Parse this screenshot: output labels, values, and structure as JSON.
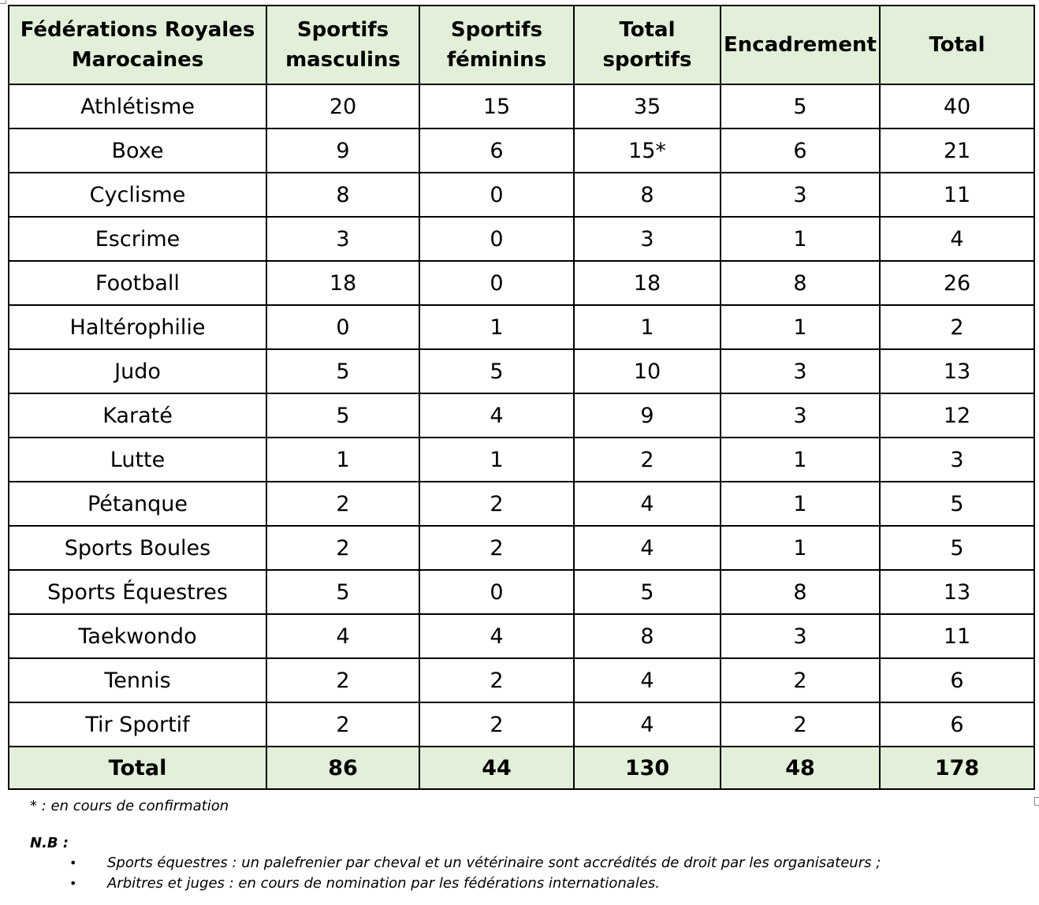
{
  "table": {
    "headers": [
      "Fédérations Royales Marocaines",
      "Sportifs masculins",
      "Sportifs féminins",
      "Total sportifs",
      "Encadrement",
      "Total"
    ],
    "rows": [
      [
        "Athlétisme",
        "20",
        "15",
        "35",
        "5",
        "40"
      ],
      [
        "Boxe",
        "9",
        "6",
        "15*",
        "6",
        "21"
      ],
      [
        "Cyclisme",
        "8",
        "0",
        "8",
        "3",
        "11"
      ],
      [
        "Escrime",
        "3",
        "0",
        "3",
        "1",
        "4"
      ],
      [
        "Football",
        "18",
        "0",
        "18",
        "8",
        "26"
      ],
      [
        "Haltérophilie",
        "0",
        "1",
        "1",
        "1",
        "2"
      ],
      [
        "Judo",
        "5",
        "5",
        "10",
        "3",
        "13"
      ],
      [
        "Karaté",
        "5",
        "4",
        "9",
        "3",
        "12"
      ],
      [
        "Lutte",
        "1",
        "1",
        "2",
        "1",
        "3"
      ],
      [
        "Pétanque",
        "2",
        "2",
        "4",
        "1",
        "5"
      ],
      [
        "Sports Boules",
        "2",
        "2",
        "4",
        "1",
        "5"
      ],
      [
        "Sports Équestres",
        "5",
        "0",
        "5",
        "8",
        "13"
      ],
      [
        "Taekwondo",
        "4",
        "4",
        "8",
        "3",
        "11"
      ],
      [
        "Tennis",
        "2",
        "2",
        "4",
        "2",
        "6"
      ],
      [
        "Tir Sportif",
        "2",
        "2",
        "4",
        "2",
        "6"
      ]
    ],
    "total_row": [
      "Total",
      "86",
      "44",
      "130",
      "48",
      "178"
    ]
  },
  "notes": {
    "footnote": "* : en cours de confirmation",
    "nb_label": "N.B :",
    "bullets": [
      "Sports équestres : un palefrenier par cheval et un vétérinaire sont accrédités de droit par les organisateurs ;",
      "Arbitres et juges : en cours de nomination par les fédérations internationales."
    ],
    "bullet_glyph": "•"
  },
  "colors": {
    "header_fill": "#e2efd9",
    "border": "#000000"
  }
}
